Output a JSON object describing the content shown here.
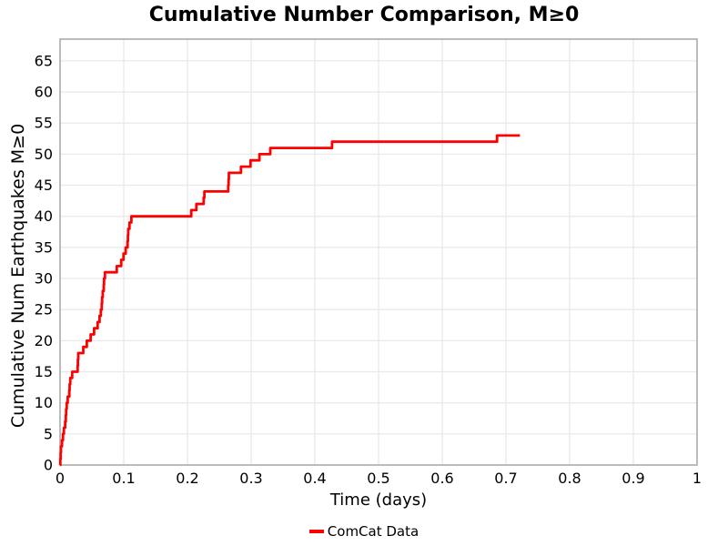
{
  "figure": {
    "title": "Cumulative Number Comparison, M≥0"
  },
  "colors": {
    "series_red": "#ff0000",
    "grid": "#e9e9e9",
    "spine": "#ababab",
    "text": "#000000",
    "background": "#ffffff"
  },
  "chart_data": {
    "type": "line",
    "subtype": "cumulative-step",
    "title": "Cumulative Number Comparison, M≥0",
    "xlabel": "Time (days)",
    "ylabel": "Cumulative Num Earthquakes M≥0",
    "xlim": [
      0,
      1
    ],
    "ylim": [
      0,
      68.5
    ],
    "grid": true,
    "xticks": [
      0,
      0.1,
      0.2,
      0.3,
      0.4,
      0.5,
      0.6,
      0.7,
      0.8,
      0.9,
      1
    ],
    "xtick_labels": [
      "0",
      "0.1",
      "0.2",
      "0.3",
      "0.4",
      "0.5",
      "0.6",
      "0.7",
      "0.8",
      "0.9",
      "1"
    ],
    "yticks": [
      0,
      5,
      10,
      15,
      20,
      25,
      30,
      35,
      40,
      45,
      50,
      55,
      60,
      65
    ],
    "ytick_labels": [
      "0",
      "5",
      "10",
      "15",
      "20",
      "25",
      "30",
      "35",
      "40",
      "45",
      "50",
      "55",
      "60",
      "65"
    ],
    "legend": {
      "position": "bottom-center",
      "entries": [
        {
          "label": "ComCat Data",
          "color": "#ff0000"
        }
      ]
    },
    "series": [
      {
        "name": "ComCat Data",
        "color": "#ff0000",
        "line_width": 2.8,
        "start": [
          0,
          0
        ],
        "x_end": 0.722,
        "step_points": [
          [
            0.0005,
            1
          ],
          [
            0.001,
            2
          ],
          [
            0.0015,
            3
          ],
          [
            0.003,
            4
          ],
          [
            0.0045,
            5
          ],
          [
            0.006,
            6
          ],
          [
            0.008,
            7
          ],
          [
            0.009,
            8
          ],
          [
            0.0095,
            9
          ],
          [
            0.0105,
            10
          ],
          [
            0.012,
            11
          ],
          [
            0.0145,
            12
          ],
          [
            0.015,
            13
          ],
          [
            0.016,
            14
          ],
          [
            0.019,
            15
          ],
          [
            0.0275,
            16
          ],
          [
            0.028,
            17
          ],
          [
            0.0285,
            18
          ],
          [
            0.0365,
            19
          ],
          [
            0.042,
            20
          ],
          [
            0.048,
            21
          ],
          [
            0.0535,
            22
          ],
          [
            0.059,
            23
          ],
          [
            0.062,
            24
          ],
          [
            0.064,
            25
          ],
          [
            0.0655,
            26
          ],
          [
            0.066,
            27
          ],
          [
            0.067,
            28
          ],
          [
            0.0685,
            29
          ],
          [
            0.069,
            30
          ],
          [
            0.0705,
            31
          ],
          [
            0.089,
            32
          ],
          [
            0.096,
            33
          ],
          [
            0.0995,
            34
          ],
          [
            0.103,
            35
          ],
          [
            0.106,
            36
          ],
          [
            0.1065,
            37
          ],
          [
            0.107,
            38
          ],
          [
            0.109,
            39
          ],
          [
            0.112,
            40
          ],
          [
            0.206,
            41
          ],
          [
            0.214,
            42
          ],
          [
            0.2255,
            43
          ],
          [
            0.2265,
            44
          ],
          [
            0.264,
            45
          ],
          [
            0.2645,
            46
          ],
          [
            0.265,
            47
          ],
          [
            0.284,
            48
          ],
          [
            0.299,
            49
          ],
          [
            0.313,
            50
          ],
          [
            0.33,
            51
          ],
          [
            0.427,
            52
          ],
          [
            0.686,
            53
          ]
        ]
      }
    ]
  }
}
